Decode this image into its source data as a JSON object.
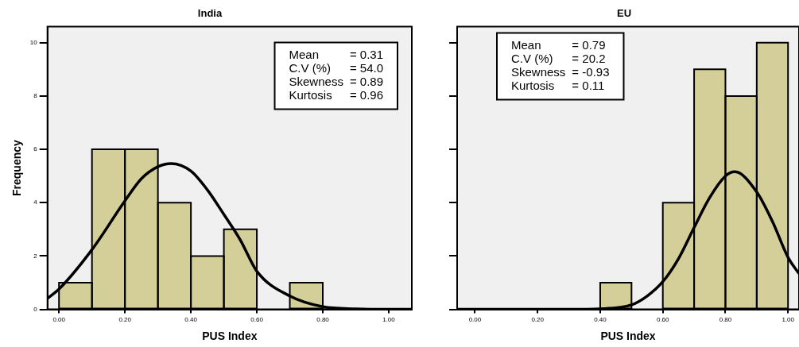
{
  "chart_data": [
    {
      "type": "histogram",
      "title": "India",
      "xlabel": "PUS Index",
      "ylabel": "Frequency",
      "bins": [
        0,
        0.1,
        0.2,
        0.3,
        0.4,
        0.5,
        0.6,
        0.7,
        0.8
      ],
      "xlim": [
        -0.035,
        1.07
      ],
      "xticks": [
        {
          "value": 0,
          "label": "0.00"
        },
        {
          "value": 0.2,
          "label": "0.20"
        },
        {
          "value": 0.4,
          "label": "0.40"
        },
        {
          "value": 0.6,
          "label": "0.60"
        },
        {
          "value": 0.8,
          "label": "0.80"
        },
        {
          "value": 1,
          "label": "1.00"
        }
      ],
      "ylim": [
        0,
        10.6
      ],
      "yticks": [
        0,
        2,
        4,
        6,
        8,
        10
      ],
      "grid": false,
      "legend": false,
      "color": "#d4cf98",
      "values": [
        1,
        6,
        6,
        4,
        2,
        3,
        0,
        1
      ],
      "series": [
        {
          "type": "line",
          "color": "#000000",
          "x": [
            -0.035,
            0,
            0.1,
            0.2,
            0.25,
            0.3,
            0.34,
            0.4,
            0.45,
            0.5,
            0.55,
            0.6,
            0.7,
            0.8,
            0.9,
            1.0,
            1.07
          ],
          "values": [
            0.41,
            0.76,
            2.24,
            4.07,
            4.9,
            5.35,
            5.47,
            5.19,
            4.48,
            3.56,
            2.6,
            1.43,
            0.5,
            0.1,
            0.02,
            0,
            0
          ]
        }
      ],
      "annotations": [
        "Mean = 0.31",
        "C.V (%) = 54.0",
        "Skewness = 0.89",
        "Kurtosis = 0.96"
      ]
    },
    {
      "type": "histogram",
      "title": "EU",
      "xlabel": "PUS Index",
      "bins": [
        0.4,
        0.5,
        0.6,
        0.7,
        0.8,
        0.9,
        1.0
      ],
      "xlim": [
        -0.057,
        1.035
      ],
      "xticks": [
        {
          "value": 0,
          "label": "0.00"
        },
        {
          "value": 0.2,
          "label": "0.20"
        },
        {
          "value": 0.4,
          "label": "0.40"
        },
        {
          "value": 0.6,
          "label": "0.60"
        },
        {
          "value": 0.8,
          "label": "0.80"
        },
        {
          "value": 1,
          "label": "1.00"
        }
      ],
      "ylim": [
        0,
        10.6
      ],
      "yticks": [
        0,
        2,
        4,
        6,
        8,
        10
      ],
      "tick_labels": "x",
      "grid": false,
      "legend": false,
      "color": "#d4cf98",
      "values": [
        1,
        0,
        4,
        9,
        8,
        10
      ],
      "series": [
        {
          "type": "line",
          "color": "#000000",
          "x": [
            -0.057,
            0.3,
            0.4,
            0.5,
            0.55,
            0.6,
            0.65,
            0.7,
            0.75,
            0.8,
            0.83,
            0.9,
            0.95,
            1.0,
            1.035
          ],
          "values": [
            0,
            0,
            0.02,
            0.17,
            0.5,
            1.04,
            1.9,
            3.07,
            4.2,
            5.0,
            5.16,
            4.4,
            3.3,
            1.95,
            1.34
          ]
        }
      ],
      "annotations": [
        "Mean = 0.79",
        "C.V (%) = 20.2",
        "Skewness = -0.93",
        "Kurtosis = 0.11"
      ]
    }
  ]
}
